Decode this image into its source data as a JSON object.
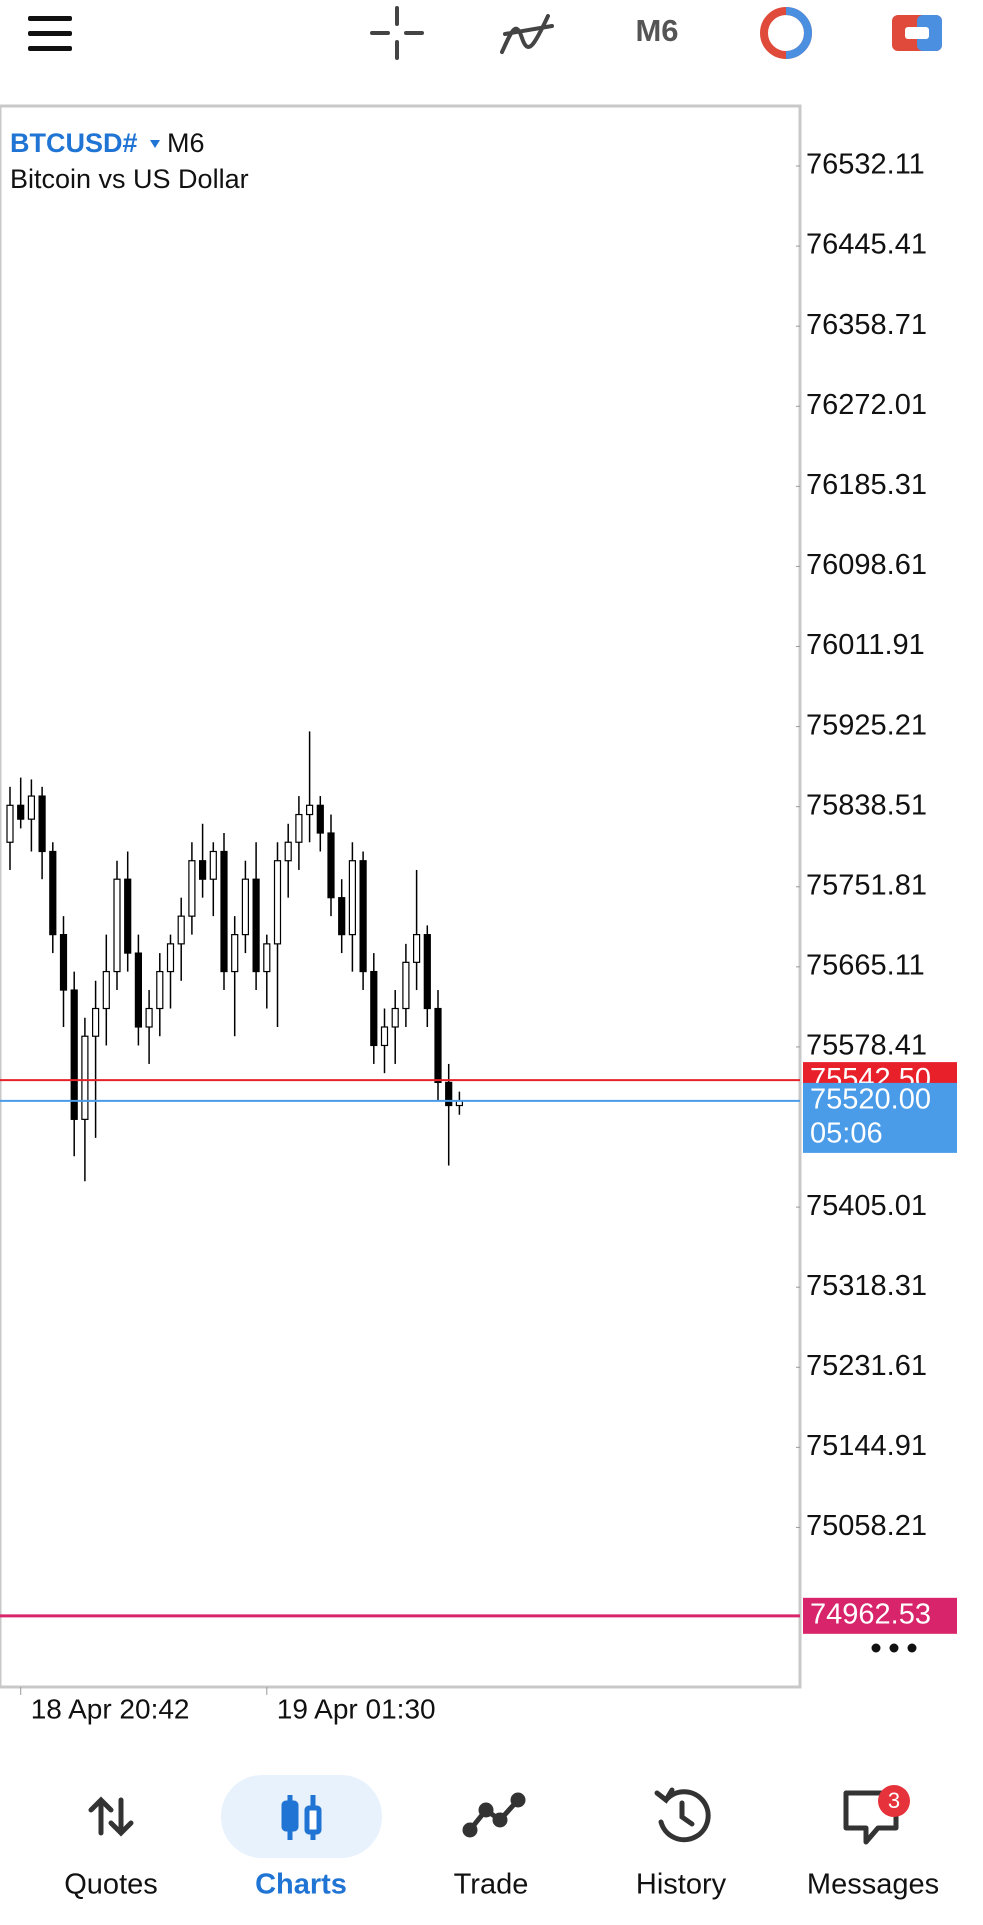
{
  "toolbar": {
    "timeframe": "M6"
  },
  "symbol": {
    "name": "BTCUSD#",
    "timeframe": "M6",
    "description": "Bitcoin vs US Dollar"
  },
  "chart_data": {
    "type": "candlestick",
    "categories": [
      null,
      "18 Apr 20:42",
      null,
      null,
      null,
      null,
      null,
      null,
      null,
      null,
      null,
      null,
      null,
      null,
      null,
      null,
      null,
      null,
      null,
      null,
      null,
      null,
      null,
      null,
      "19 Apr 01:30",
      null,
      null,
      null,
      null,
      null,
      null,
      null,
      null,
      null,
      null,
      null,
      null,
      null,
      null,
      null,
      null,
      null,
      null
    ],
    "open": [
      75800,
      75840,
      75825,
      75850,
      75790,
      75700,
      75640,
      75500,
      75590,
      75620,
      75660,
      75760,
      75680,
      75600,
      75620,
      75660,
      75690,
      75720,
      75780,
      75760,
      75790,
      75660,
      75700,
      75760,
      75660,
      75690,
      75780,
      75800,
      75830,
      75840,
      75810,
      75740,
      75700,
      75780,
      75660,
      75580,
      75600,
      75620,
      75670,
      75700,
      75620,
      75540,
      75515
    ],
    "high": [
      75860,
      75870,
      75868,
      75860,
      75800,
      75720,
      75660,
      75610,
      75650,
      75700,
      75780,
      75790,
      75700,
      75640,
      75680,
      75700,
      75740,
      75800,
      75820,
      75800,
      75810,
      75720,
      75780,
      75800,
      75700,
      75800,
      75820,
      75850,
      75920,
      75850,
      75830,
      75760,
      75800,
      75790,
      75680,
      75620,
      75640,
      75690,
      75770,
      75710,
      75640,
      75560,
      75530
    ],
    "low": [
      75770,
      75815,
      75790,
      75760,
      75680,
      75600,
      75460,
      75433,
      75480,
      75580,
      75640,
      75660,
      75580,
      75560,
      75590,
      75620,
      75650,
      75700,
      75740,
      75720,
      75640,
      75590,
      75680,
      75640,
      75620,
      75600,
      75740,
      75770,
      75800,
      75790,
      75720,
      75680,
      75660,
      75640,
      75560,
      75550,
      75560,
      75600,
      75640,
      75600,
      75520,
      75450,
      75505
    ],
    "close": [
      75840,
      75825,
      75850,
      75790,
      75700,
      75640,
      75500,
      75590,
      75620,
      75660,
      75760,
      75680,
      75600,
      75620,
      75660,
      75690,
      75720,
      75780,
      75760,
      75790,
      75660,
      75700,
      75760,
      75660,
      75690,
      75780,
      75800,
      75830,
      75840,
      75810,
      75740,
      75700,
      75780,
      75660,
      75580,
      75600,
      75620,
      75670,
      75700,
      75620,
      75540,
      75515,
      75520
    ],
    "ylim": [
      74885.47,
      76597.07
    ],
    "yticks": [
      76532.11,
      76445.41,
      76358.71,
      76272.01,
      76185.31,
      76098.61,
      76011.91,
      75925.21,
      75838.51,
      75751.81,
      75665.11,
      75578.41,
      75405.01,
      75318.31,
      75231.61,
      75144.91,
      75058.21
    ],
    "price_lines": [
      {
        "value": 75542.5,
        "label": "75542.50",
        "color": "#e8202a"
      },
      {
        "value": 75520,
        "label": "75520.00",
        "color": "#4a9be8"
      },
      {
        "value": 74962.53,
        "label": "74962.53",
        "color": "#d8246a"
      }
    ],
    "countdown": "05:06"
  },
  "nav": {
    "items": [
      "Quotes",
      "Charts",
      "Trade",
      "History",
      "Messages"
    ],
    "active": "Charts",
    "badge": 3
  }
}
